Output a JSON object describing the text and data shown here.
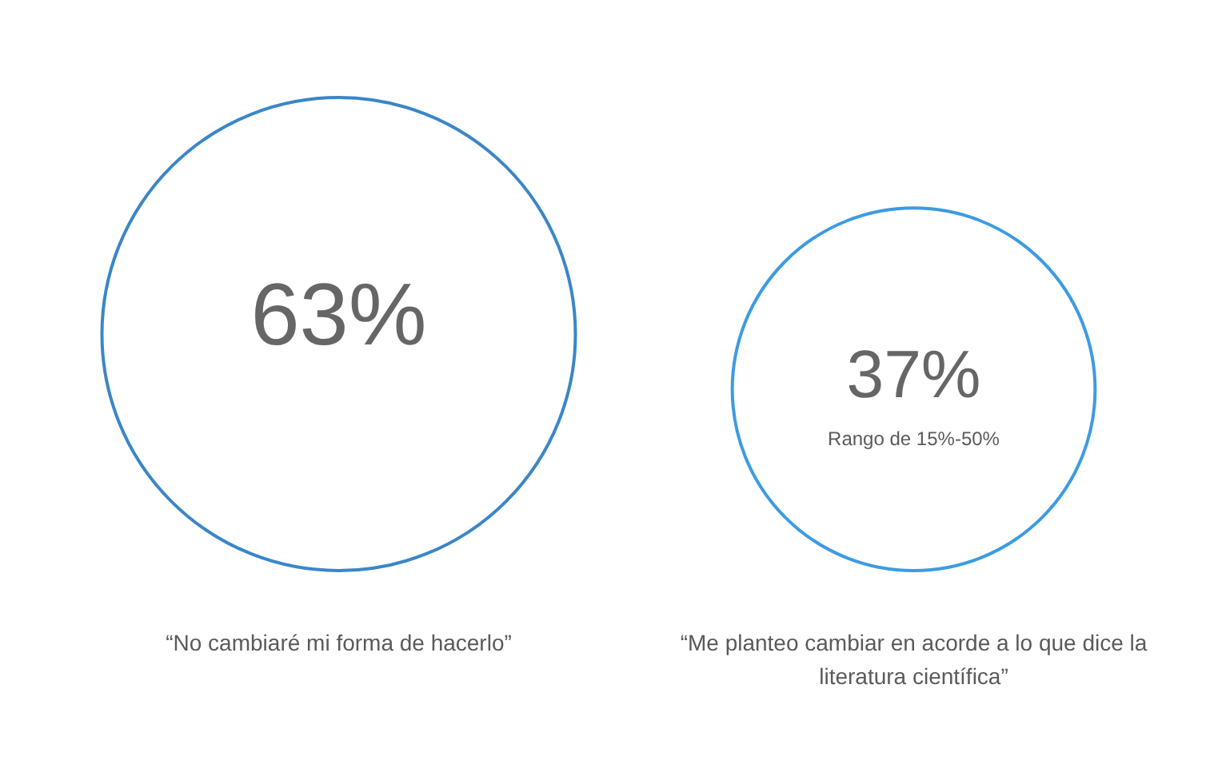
{
  "chart_data": {
    "type": "other",
    "categories": [
      "“No cambiaré mi forma de hacerlo”",
      "“Me planteo cambiar en acorde a lo que dice la literatura científica”"
    ],
    "values": [
      63,
      37
    ],
    "value_labels": [
      "63%",
      "37%"
    ],
    "colors": [
      "#3b86c7",
      "#3d9be1"
    ],
    "annotations": [
      {
        "text": "Rango de 15%-50%",
        "x": "“Me planteo cambiar en acorde a lo que dice la literatura científica”"
      }
    ]
  }
}
